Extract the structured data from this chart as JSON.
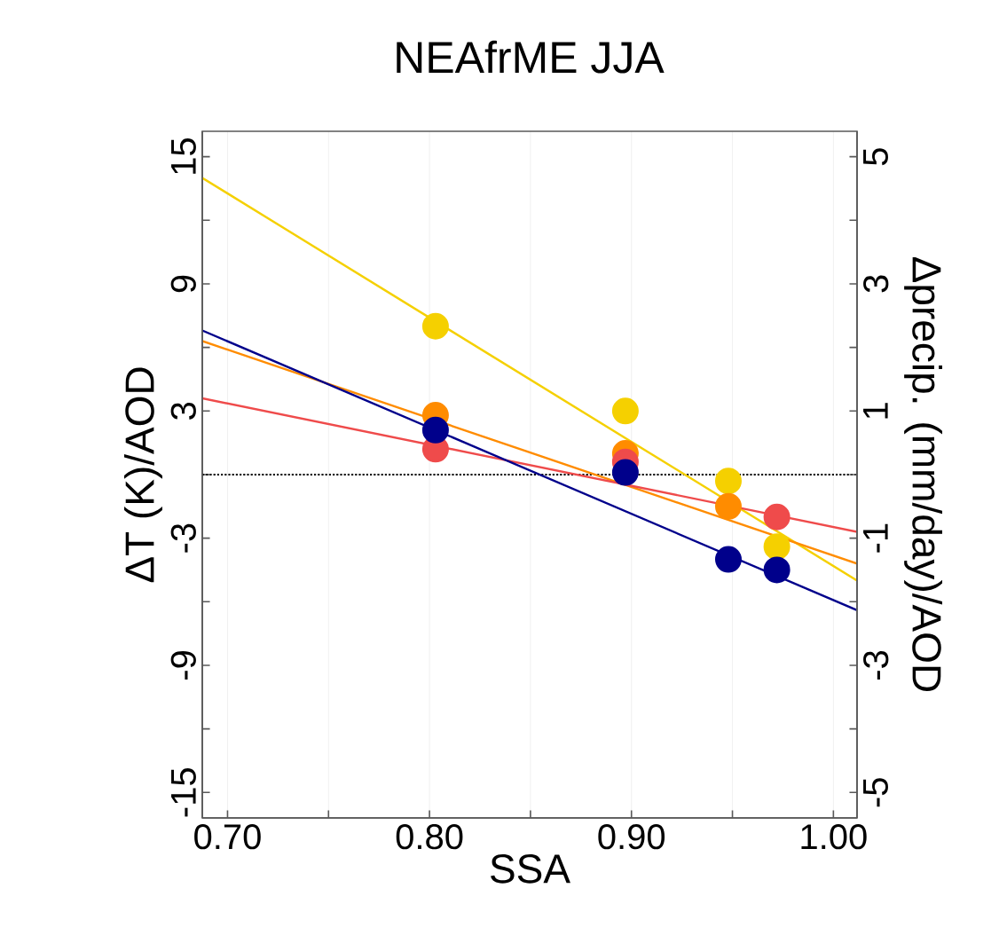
{
  "chart_data": {
    "type": "scatter",
    "title": "NEAfrME JJA",
    "xlabel": "SSA",
    "ylabel": "ΔT (K)/AOD",
    "y2label": "Δprecip. (mm/day)/AOD",
    "xlim": [
      0.6875,
      1.0117
    ],
    "ylim": [
      -16.2,
      16.2
    ],
    "y2lim": [
      -5.4,
      5.4
    ],
    "xticks": [
      {
        "value": 0.7,
        "label": "0.70"
      },
      {
        "value": 0.75,
        "label": null
      },
      {
        "value": 0.8,
        "label": "0.80"
      },
      {
        "value": 0.85,
        "label": null
      },
      {
        "value": 0.9,
        "label": "0.90"
      },
      {
        "value": 0.95,
        "label": null
      },
      {
        "value": 1.0,
        "label": "1.00"
      }
    ],
    "yticks": [
      15,
      {
        "value": 12,
        "label": null
      },
      9,
      {
        "value": 6,
        "label": null
      },
      3,
      {
        "value": 0,
        "label": null
      },
      -3,
      {
        "value": -6,
        "label": null
      },
      -9,
      {
        "value": -12,
        "label": null
      },
      -15
    ],
    "y2ticks": [
      5,
      {
        "value": 4,
        "label": null
      },
      3,
      {
        "value": 2,
        "label": null
      },
      1,
      {
        "value": 0,
        "label": null
      },
      -1,
      {
        "value": -2,
        "label": null
      },
      -3,
      {
        "value": -4,
        "label": null
      },
      -5
    ],
    "grid": "x",
    "marker": "circle",
    "ref_lines": [
      {
        "axis": "y",
        "value": 0,
        "color": "#000000",
        "line_style": "dotted"
      }
    ],
    "series": [
      {
        "type": "line",
        "color": "#f5d000",
        "x": [
          0.6875,
          1.0117
        ],
        "values": [
          14.0,
          -5.0
        ],
        "marker": "none"
      },
      {
        "type": "line",
        "color": "#ff8c00",
        "x": [
          0.6875,
          1.0117
        ],
        "values": [
          6.3,
          -4.2
        ],
        "marker": "none"
      },
      {
        "type": "line",
        "color": "#ef4b4b",
        "x": [
          0.6875,
          1.0117
        ],
        "values": [
          3.6,
          -2.7
        ],
        "marker": "none"
      },
      {
        "type": "line",
        "color": "#00008b",
        "x": [
          0.6875,
          1.0117
        ],
        "values": [
          6.8,
          -6.4
        ],
        "marker": "none"
      },
      {
        "color": "#f5d000",
        "x": [
          0.803,
          0.948,
          0.972
        ],
        "values": [
          7.0,
          -0.3,
          -3.4
        ]
      },
      {
        "color": "#ff8c00",
        "x": [
          0.803,
          0.948
        ],
        "values": [
          2.8,
          -1.5
        ]
      },
      {
        "color": "#ef4b4b",
        "x": [
          0.803,
          0.972
        ],
        "values": [
          1.2,
          -2.0
        ]
      },
      {
        "color": "#00008b",
        "x": [
          0.803,
          0.948,
          0.972
        ],
        "values": [
          2.1,
          -4.0,
          -4.5
        ]
      },
      {
        "color": "#f5d000",
        "x": [
          0.897
        ],
        "values": [
          3.0
        ]
      },
      {
        "color": "#ff8c00",
        "x": [
          0.897
        ],
        "values": [
          1.0
        ]
      },
      {
        "color": "#ef4b4b",
        "x": [
          0.897
        ],
        "values": [
          0.6
        ]
      },
      {
        "color": "#00008b",
        "x": [
          0.897
        ],
        "values": [
          0.1
        ]
      }
    ]
  }
}
